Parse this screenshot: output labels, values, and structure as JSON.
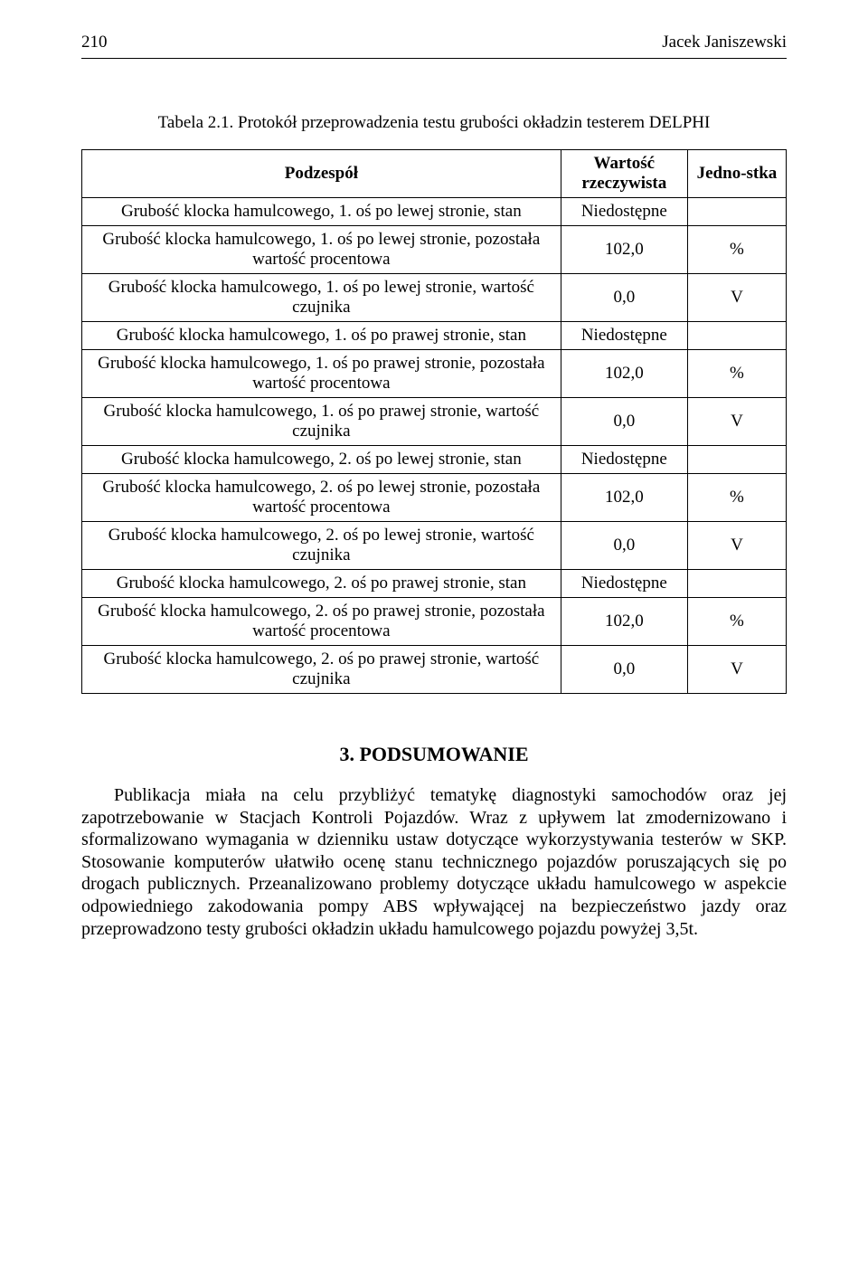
{
  "header": {
    "page_number": "210",
    "author": "Jacek Janiszewski"
  },
  "table_caption": "Tabela 2.1. Protokół przeprowadzenia testu grubości okładzin testerem DELPHI",
  "columns": {
    "c0": "Podzespół",
    "c1": "Wartość rzeczywista",
    "c2": "Jedno-stka"
  },
  "rows": [
    {
      "label": "Grubość klocka hamulcowego, 1. oś po lewej stronie, stan",
      "value": "Niedostępne",
      "unit": ""
    },
    {
      "label": "Grubość klocka hamulcowego, 1. oś po lewej stronie, pozostała wartość procentowa",
      "value": "102,0",
      "unit": "%"
    },
    {
      "label": "Grubość klocka hamulcowego, 1. oś po lewej stronie, wartość czujnika",
      "value": "0,0",
      "unit": "V"
    },
    {
      "label": "Grubość klocka hamulcowego, 1. oś po prawej stronie, stan",
      "value": "Niedostępne",
      "unit": ""
    },
    {
      "label": "Grubość klocka hamulcowego, 1. oś po prawej stronie, pozostała wartość procentowa",
      "value": "102,0",
      "unit": "%"
    },
    {
      "label": "Grubość klocka hamulcowego, 1. oś po prawej stronie, wartość czujnika",
      "value": "0,0",
      "unit": "V"
    },
    {
      "label": "Grubość klocka hamulcowego, 2. oś po lewej stronie, stan",
      "value": "Niedostępne",
      "unit": ""
    },
    {
      "label": "Grubość klocka hamulcowego, 2. oś po lewej stronie, pozostała wartość procentowa",
      "value": "102,0",
      "unit": "%"
    },
    {
      "label": "Grubość klocka hamulcowego, 2. oś po lewej stronie, wartość czujnika",
      "value": "0,0",
      "unit": "V"
    },
    {
      "label": "Grubość klocka hamulcowego, 2. oś po prawej stronie, stan",
      "value": "Niedostępne",
      "unit": ""
    },
    {
      "label": "Grubość klocka hamulcowego, 2. oś po prawej stronie, pozostała wartość procentowa",
      "value": "102,0",
      "unit": "%"
    },
    {
      "label": "Grubość klocka hamulcowego, 2. oś po prawej stronie, wartość czujnika",
      "value": "0,0",
      "unit": "V"
    }
  ],
  "section_heading": "3. PODSUMOWANIE",
  "body": "Publikacja miała na celu przybliżyć tematykę diagnostyki samochodów oraz jej zapotrzebowanie w Stacjach Kontroli Pojazdów. Wraz z upływem lat zmodernizowano i sformalizowano wymagania w dzienniku ustaw dotyczące wykorzystywania testerów w SKP. Stosowanie komputerów ułatwiło ocenę stanu technicznego pojazdów poruszających się po drogach publicznych. Przeanalizowano problemy dotyczące układu hamulcowego w aspekcie odpowiedniego zakodowania pompy ABS wpływającej na bezpieczeństwo jazdy oraz przeprowadzono testy grubości okładzin układu hamulcowego pojazdu powyżej 3,5t."
}
